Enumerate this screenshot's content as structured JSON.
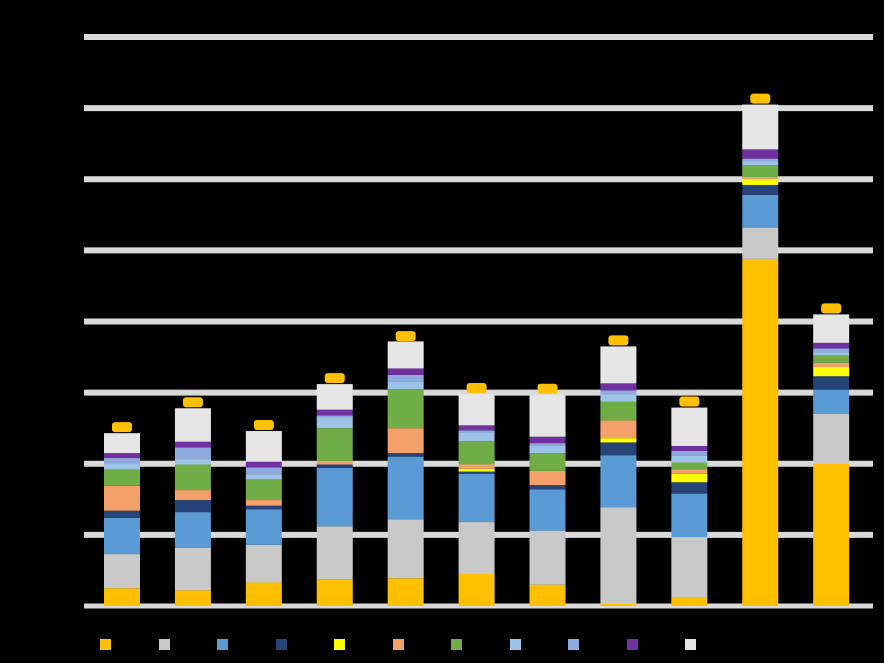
{
  "chart_data": {
    "type": "bar",
    "stacked": true,
    "title": "",
    "xlabel": "",
    "ylabel": "",
    "ylim": [
      0,
      8
    ],
    "grid": true,
    "legend_position": "bottom",
    "background": "#000000",
    "gridline_color": "#d9d9d9",
    "total_label_color": "#ffc000",
    "categories": [
      "",
      "",
      "",
      "",
      "",
      "",
      "",
      "",
      "",
      "",
      ""
    ],
    "totals": [
      2.43,
      2.78,
      2.46,
      3.12,
      3.71,
      2.98,
      2.97,
      3.65,
      2.79,
      7.05,
      4.1
    ],
    "series": [
      {
        "color": "#ffc000",
        "values": [
          0.25,
          0.22,
          0.33,
          0.37,
          0.39,
          0.45,
          0.3,
          0.03,
          0.12,
          4.88,
          2.0
        ]
      },
      {
        "color": "#c9c9c9",
        "values": [
          0.48,
          0.6,
          0.53,
          0.75,
          0.83,
          0.73,
          0.76,
          1.36,
          0.85,
          0.44,
          0.7
        ]
      },
      {
        "color": "#5b9bd5",
        "values": [
          0.51,
          0.5,
          0.5,
          0.82,
          0.88,
          0.68,
          0.58,
          0.73,
          0.61,
          0.46,
          0.34
        ]
      },
      {
        "color": "#264478",
        "values": [
          0.1,
          0.17,
          0.05,
          0.05,
          0.05,
          0.03,
          0.06,
          0.18,
          0.16,
          0.14,
          0.19
        ]
      },
      {
        "color": "#ffff00",
        "values": [
          0,
          0,
          0,
          0,
          0,
          0.04,
          0,
          0.06,
          0.12,
          0.08,
          0.13
        ]
      },
      {
        "color": "#f4a06a",
        "values": [
          0.35,
          0.14,
          0.08,
          0.05,
          0.35,
          0.06,
          0.2,
          0.25,
          0.06,
          0.03,
          0.06
        ]
      },
      {
        "color": "#70ad47",
        "values": [
          0.23,
          0.36,
          0.29,
          0.46,
          0.55,
          0.33,
          0.25,
          0.26,
          0.1,
          0.17,
          0.1
        ]
      },
      {
        "color": "#9dc3e6",
        "values": [
          0.08,
          0.07,
          0.07,
          0.15,
          0.1,
          0.12,
          0.1,
          0.1,
          0.1,
          0.05,
          0.05
        ]
      },
      {
        "color": "#8faadc",
        "values": [
          0.08,
          0.17,
          0.1,
          0.03,
          0.1,
          0.03,
          0.04,
          0.06,
          0.06,
          0.04,
          0.05
        ]
      },
      {
        "color": "#7030a0",
        "values": [
          0.07,
          0.08,
          0.08,
          0.08,
          0.09,
          0.07,
          0.09,
          0.1,
          0.07,
          0.13,
          0.08
        ]
      },
      {
        "color": "#e6e6e6",
        "values": [
          0.28,
          0.47,
          0.43,
          0.36,
          0.38,
          0.44,
          0.59,
          0.52,
          0.54,
          0.63,
          0.4
        ]
      }
    ]
  }
}
